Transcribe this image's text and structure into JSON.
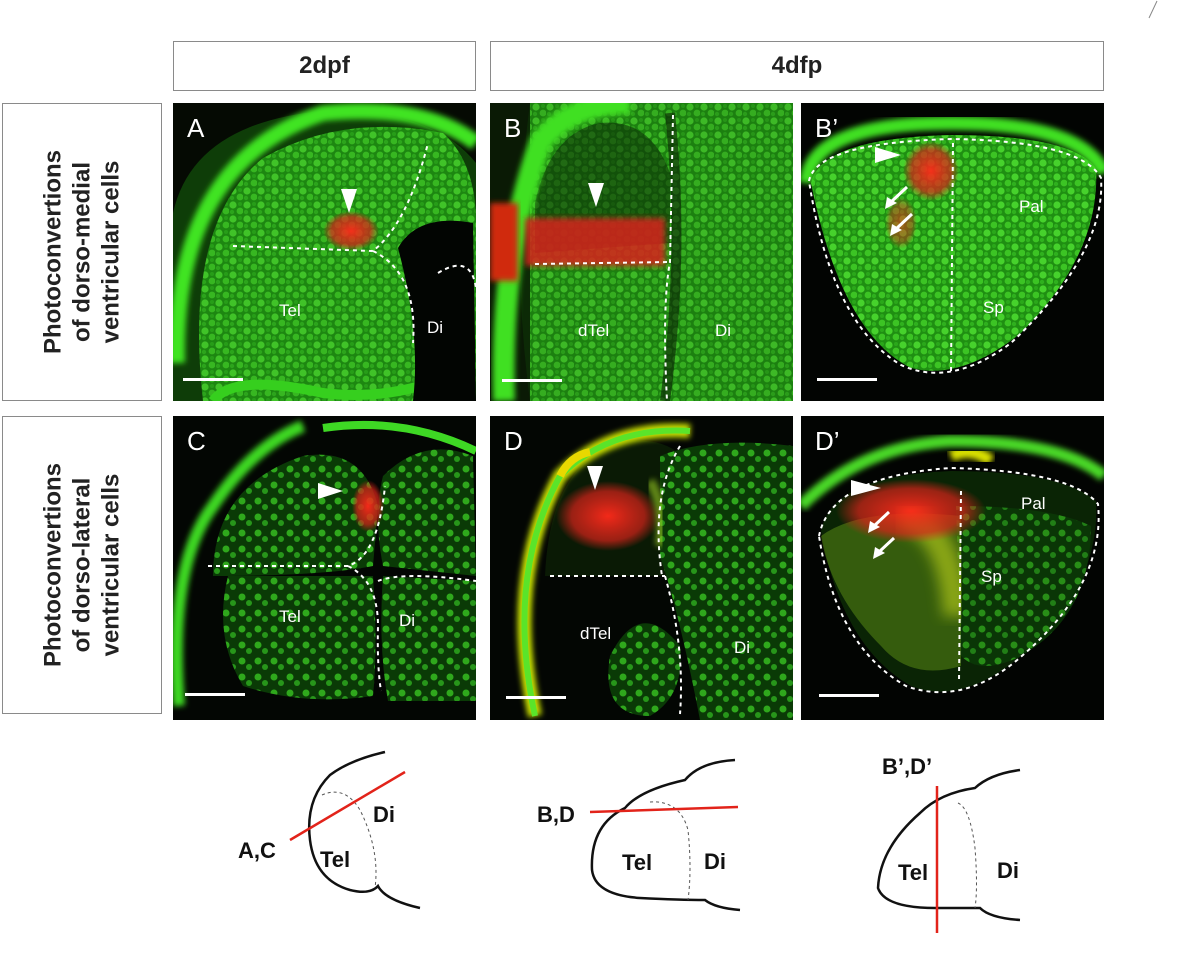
{
  "headers": {
    "col1": "2dpf",
    "col2": "4dfp"
  },
  "rows": [
    {
      "label_line1": "Photoconvertions",
      "label_line2": "of dorso-medial",
      "label_line3": "ventricular cells"
    },
    {
      "label_line1": "Photoconvertions",
      "label_line2": "of dorso-lateral",
      "label_line3": "ventricular cells"
    }
  ],
  "panels": {
    "A": {
      "letter": "A",
      "labels": [
        "Tel",
        "Di"
      ]
    },
    "B": {
      "letter": "B",
      "labels": [
        "dTel",
        "Di"
      ]
    },
    "Bp": {
      "letter": "B’",
      "labels": [
        "Pal",
        "Sp"
      ]
    },
    "C": {
      "letter": "C",
      "labels": [
        "Tel",
        "Di"
      ]
    },
    "D": {
      "letter": "D",
      "labels": [
        "dTel",
        "Di"
      ]
    },
    "Dp": {
      "letter": "D’",
      "labels": [
        "Pal",
        "Sp"
      ]
    }
  },
  "diagrams": {
    "d1": {
      "section": "A,C",
      "tel": "Tel",
      "di": "Di"
    },
    "d2": {
      "section": "B,D",
      "tel": "Tel",
      "di": "Di"
    },
    "d3": {
      "section": "B’,D’",
      "tel": "Tel",
      "di": "Di"
    }
  },
  "colors": {
    "green": "#33d11e",
    "red": "#e2231a",
    "yellow": "#c8e000",
    "background": "#000000"
  }
}
